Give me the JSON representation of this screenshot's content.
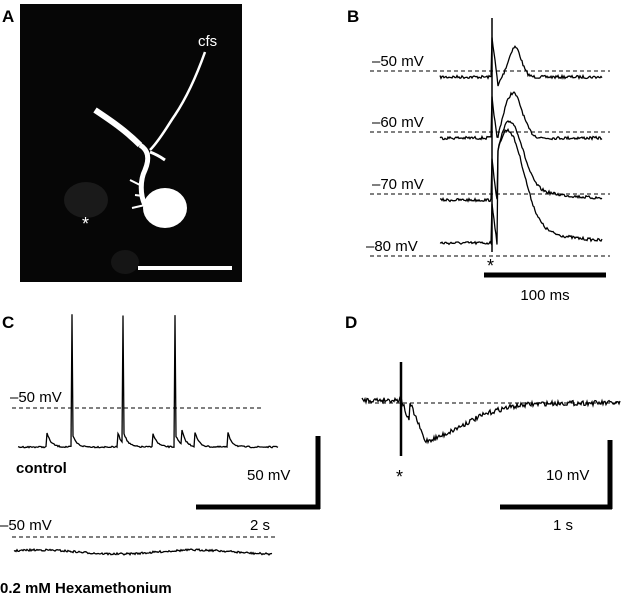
{
  "panels": {
    "A": {
      "label": "A",
      "process_label": "cfs",
      "marker": "*"
    },
    "B": {
      "label": "B",
      "holding_potentials": [
        "–50 mV",
        "–60 mV",
        "–70 mV",
        "–80 mV"
      ],
      "stimulus": "*",
      "time_scale": "100 ms"
    },
    "C": {
      "label": "C",
      "control_level": "–50 mV",
      "control": "control",
      "voltage_scale": "50 mV",
      "time_scale": "2 s",
      "drug_level": "–50 mV",
      "drug": "0.2 mM Hexamethonium"
    },
    "D": {
      "label": "D",
      "stimulus": "*",
      "voltage_scale": "10 mV",
      "time_scale": "1 s"
    }
  }
}
